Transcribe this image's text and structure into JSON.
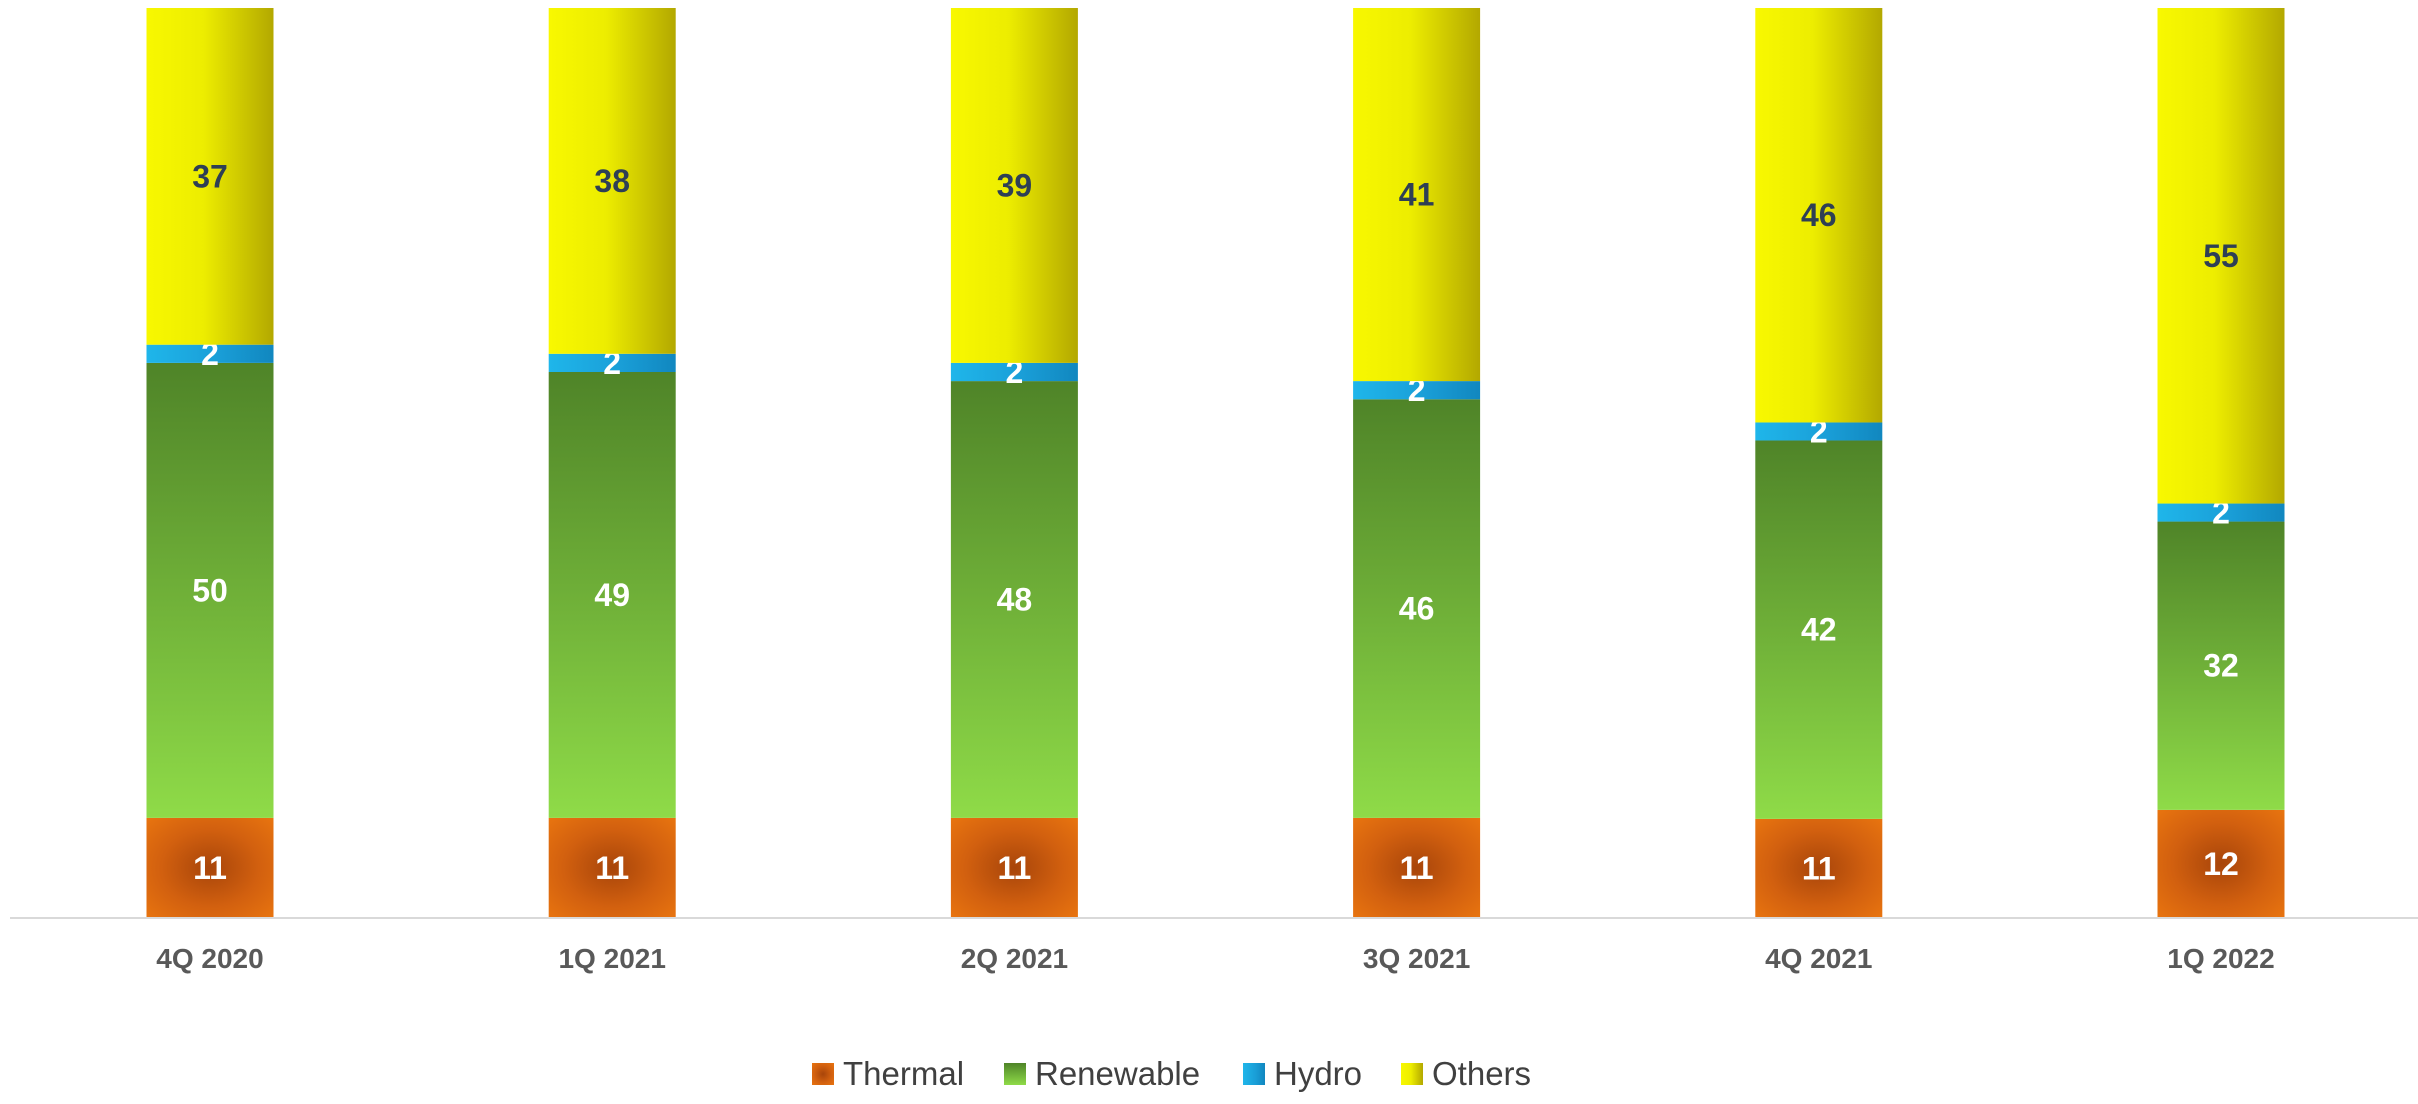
{
  "chart_data": {
    "type": "bar",
    "stacked": true,
    "normalized": true,
    "title": "",
    "xlabel": "",
    "ylabel": "",
    "ylim": [
      0,
      100
    ],
    "grid": false,
    "legend_position": "bottom",
    "categories": [
      "4Q 2020",
      "1Q 2021",
      "2Q 2021",
      "3Q 2021",
      "4Q 2021",
      "1Q 2022"
    ],
    "series": [
      {
        "name": "Thermal",
        "values": [
          11,
          11,
          11,
          11,
          11,
          12
        ],
        "color": "#E06C0E",
        "label_color": "#FFFFFF"
      },
      {
        "name": "Renewable",
        "values": [
          50,
          49,
          48,
          46,
          42,
          32
        ],
        "color": "#70B038",
        "label_color": "#FFFFFF"
      },
      {
        "name": "Hydro",
        "values": [
          2,
          2,
          2,
          2,
          2,
          2
        ],
        "color": "#1AA7DE",
        "label_color": "#FFFFFF"
      },
      {
        "name": "Others",
        "values": [
          37,
          38,
          39,
          41,
          46,
          55
        ],
        "color": "#EAEA00",
        "label_color": "#2E3F55"
      }
    ]
  }
}
